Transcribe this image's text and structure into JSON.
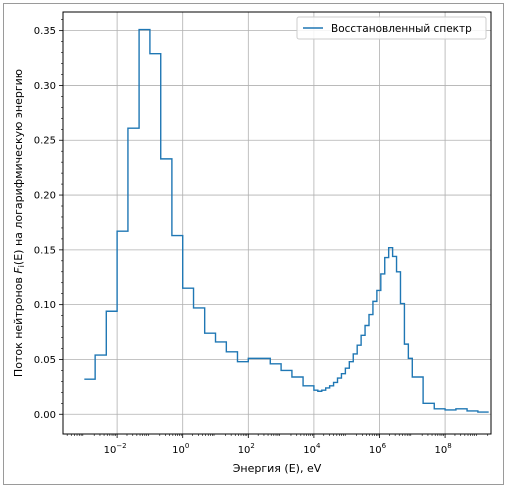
{
  "chart_data": {
    "type": "line",
    "drawstyle": "steps-post",
    "title": "",
    "xlabel": "Энергия (E), eV",
    "ylabel_parts": [
      "Поток нейтронов ",
      "F",
      "i",
      "(E)",
      " на логарифмическую энергию"
    ],
    "x_scale": "log",
    "xlim_exp": [
      -3.65,
      9.4
    ],
    "ylim": [
      -0.018,
      0.367
    ],
    "grid": true,
    "legend": {
      "position": "top-right",
      "entries": [
        "Восстановленный спектр"
      ]
    },
    "colors": {
      "series": "#1f77b4",
      "grid": "#b0b0b0",
      "frame": "#000000"
    },
    "x_ticks": [
      {
        "exp": -2,
        "label": "10",
        "sup": "−2"
      },
      {
        "exp": 0,
        "label": "10",
        "sup": "0"
      },
      {
        "exp": 2,
        "label": "10",
        "sup": "2"
      },
      {
        "exp": 4,
        "label": "10",
        "sup": "4"
      },
      {
        "exp": 6,
        "label": "10",
        "sup": "6"
      },
      {
        "exp": 8,
        "label": "10",
        "sup": "8"
      }
    ],
    "y_ticks": [
      {
        "value": 0.0,
        "label": "0.00"
      },
      {
        "value": 0.05,
        "label": "0.05"
      },
      {
        "value": 0.1,
        "label": "0.10"
      },
      {
        "value": 0.15,
        "label": "0.15"
      },
      {
        "value": 0.2,
        "label": "0.20"
      },
      {
        "value": 0.25,
        "label": "0.25"
      },
      {
        "value": 0.3,
        "label": "0.30"
      },
      {
        "value": 0.35,
        "label": "0.35"
      }
    ],
    "series": [
      {
        "name": "Восстановленный спектр",
        "x_exp": [
          -3.0,
          -2.67,
          -2.33,
          -2.0,
          -1.67,
          -1.33,
          -1.0,
          -0.67,
          -0.33,
          0.0,
          0.33,
          0.67,
          1.0,
          1.33,
          1.67,
          2.0,
          2.33,
          2.67,
          3.0,
          3.33,
          3.67,
          4.0,
          4.12,
          4.24,
          4.36,
          4.48,
          4.6,
          4.72,
          4.84,
          4.96,
          5.08,
          5.2,
          5.32,
          5.44,
          5.56,
          5.68,
          5.8,
          5.92,
          6.04,
          6.16,
          6.28,
          6.4,
          6.52,
          6.64,
          6.76,
          6.88,
          7.0,
          7.33,
          7.67,
          8.0,
          8.33,
          8.67,
          9.0
        ],
        "y": [
          0.032,
          0.054,
          0.094,
          0.167,
          0.261,
          0.351,
          0.329,
          0.233,
          0.163,
          0.115,
          0.097,
          0.074,
          0.066,
          0.057,
          0.048,
          0.051,
          0.051,
          0.046,
          0.04,
          0.034,
          0.026,
          0.022,
          0.021,
          0.022,
          0.024,
          0.026,
          0.029,
          0.033,
          0.037,
          0.042,
          0.048,
          0.055,
          0.063,
          0.072,
          0.081,
          0.091,
          0.103,
          0.113,
          0.128,
          0.143,
          0.152,
          0.144,
          0.13,
          0.101,
          0.064,
          0.051,
          0.034,
          0.01,
          0.005,
          0.004,
          0.005,
          0.003,
          0.002
        ],
        "x_end_exp": 9.33
      }
    ]
  }
}
